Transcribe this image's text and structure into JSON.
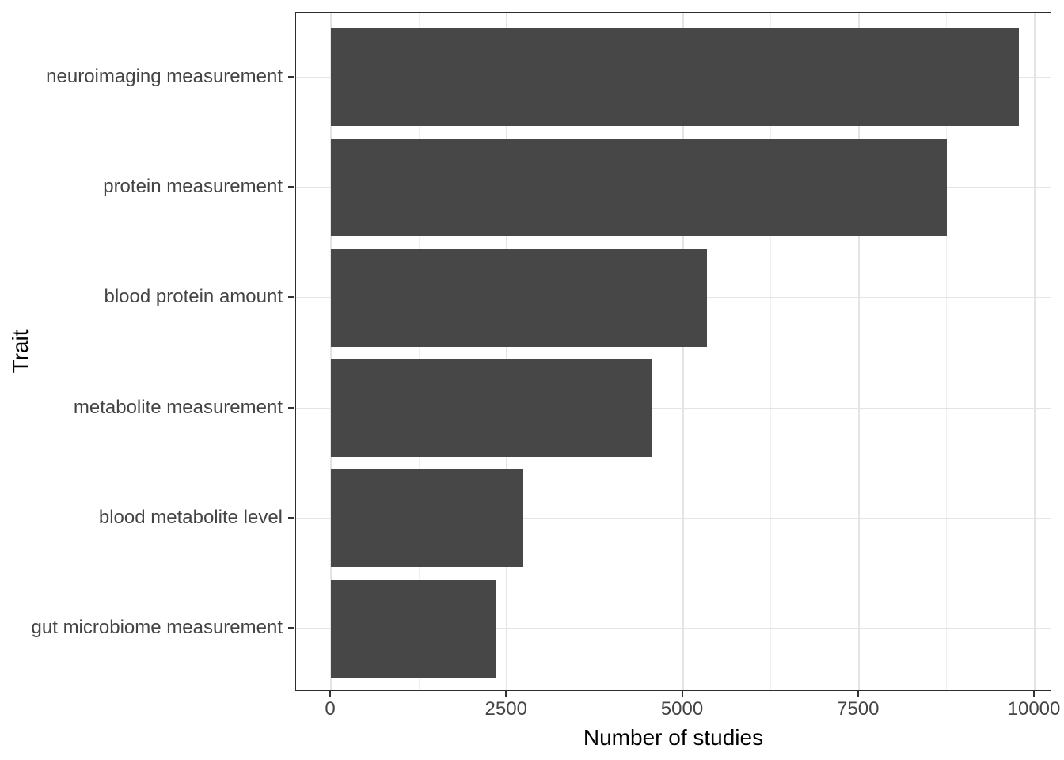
{
  "chart_data": {
    "type": "bar",
    "orientation": "horizontal",
    "title": "",
    "xlabel": "Number of studies",
    "ylabel": "Trait",
    "categories": [
      "neuroimaging measurement",
      "protein measurement",
      "blood protein amount",
      "metabolite measurement",
      "blood metabolite level",
      "gut microbiome measurement"
    ],
    "values": [
      9780,
      8750,
      5340,
      4560,
      2730,
      2350
    ],
    "xlim": [
      -490,
      10250
    ],
    "x_major_ticks": [
      0,
      2500,
      5000,
      7500,
      10000
    ],
    "x_tick_labels": [
      "0",
      "2500",
      "5000",
      "7500",
      "10000"
    ],
    "x_minor_ticks": [
      1250,
      3750,
      6250,
      8750
    ],
    "grid": "vertical major+minor, horizontal major at category centers",
    "legend": "none",
    "colors": {
      "bar_fill": "#474747",
      "major_grid": "#e4e4e4",
      "minor_grid": "#efefef",
      "panel_border": "#2d2d2d",
      "tick_mark": "#333333",
      "axis_text": "#444444",
      "axis_title": "#000000",
      "background": "#ffffff"
    }
  }
}
